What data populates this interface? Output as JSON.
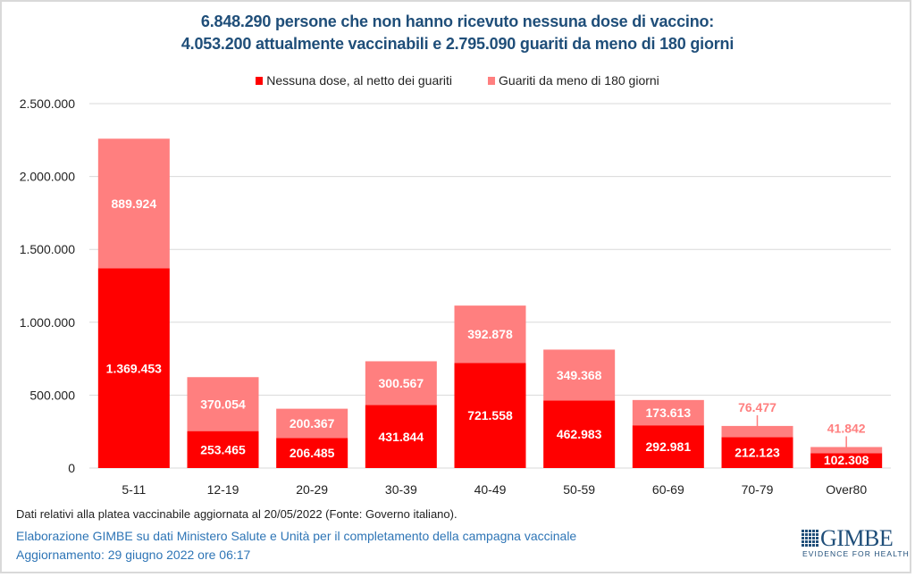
{
  "chart_data": {
    "type": "bar",
    "stacked": true,
    "title": "6.848.290 persone che non hanno ricevuto nessuna dose di vaccino:",
    "subtitle": "4.053.200 attualmente vaccinabili e 2.795.090 guariti da meno di 180 giorni",
    "xlabel": "",
    "ylabel": "",
    "ylim": [
      0,
      2500000
    ],
    "yticks": [
      0,
      500000,
      1000000,
      1500000,
      2000000,
      2500000
    ],
    "ytick_labels": [
      "0",
      "500.000",
      "1.000.000",
      "1.500.000",
      "2.000.000",
      "2.500.000"
    ],
    "grid": true,
    "legend_position": "top-center",
    "categories": [
      "5-11",
      "12-19",
      "20-29",
      "30-39",
      "40-49",
      "50-59",
      "60-69",
      "70-79",
      "Over80"
    ],
    "series": [
      {
        "name": "Nessuna dose, al netto dei guariti",
        "color": "#ff0000",
        "values": [
          1369453,
          253465,
          206485,
          431844,
          721558,
          462983,
          292981,
          212123,
          102308
        ],
        "labels": [
          "1.369.453",
          "253.465",
          "206.485",
          "431.844",
          "721.558",
          "462.983",
          "292.981",
          "212.123",
          "102.308"
        ]
      },
      {
        "name": "Guariti da meno di 180 giorni",
        "color": "#ff7f7f",
        "values": [
          889924,
          370054,
          200367,
          300567,
          392878,
          349368,
          173613,
          76477,
          41842
        ],
        "labels": [
          "889.924",
          "370.054",
          "200.367",
          "300.567",
          "392.878",
          "349.368",
          "173.613",
          "76.477",
          "41.842"
        ]
      }
    ]
  },
  "footer": {
    "note": "Dati relativi alla platea vaccinabile aggiornata al 20/05/2022 (Fonte: Governo italiano).",
    "source": "Elaborazione GIMBE su dati Ministero Salute e Unità per il completamento della campagna vaccinale",
    "updated": "Aggiornamento: 29 giugno 2022 ore 06:17"
  },
  "logo": {
    "name": "GIMBE",
    "tagline": "EVIDENCE FOR HEALTH"
  },
  "colors": {
    "title": "#1f4e79",
    "source_text": "#2e75b6",
    "grid": "#d9d9d9"
  }
}
